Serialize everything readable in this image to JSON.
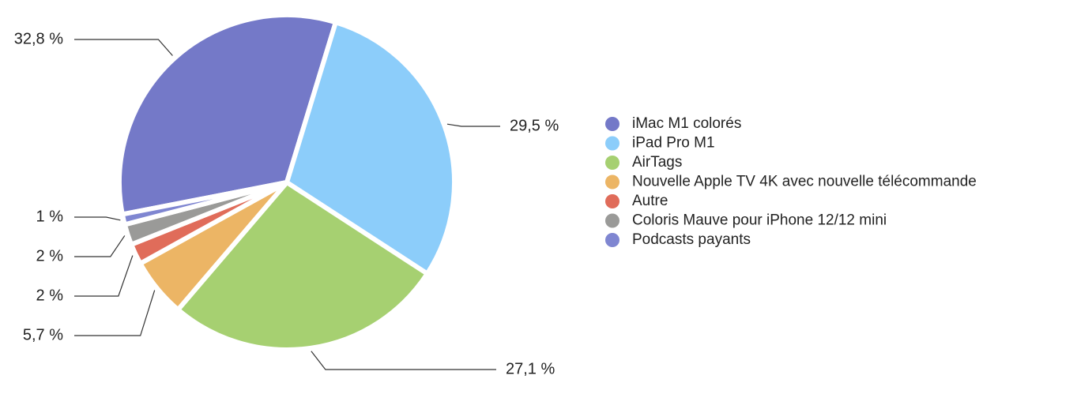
{
  "chart_data": {
    "type": "pie",
    "categories": [
      "iMac M1 colorés",
      "iPad Pro M1",
      "AirTags",
      "Nouvelle Apple TV 4K avec nouvelle télécommande",
      "Autre",
      "Coloris Mauve pour iPhone 12/12 mini",
      "Podcasts payants"
    ],
    "values": [
      32.8,
      29.5,
      27.1,
      5.7,
      2,
      2,
      1
    ],
    "value_labels": [
      "32,8 %",
      "29,5 %",
      "27,1 %",
      "5,7 %",
      "2 %",
      "2 %",
      "1 %"
    ],
    "colors": [
      "#7479c8",
      "#8ccdfa",
      "#a6d071",
      "#ecb565",
      "#e06c5a",
      "#9a9a98",
      "#7f86d1"
    ],
    "legend": "right"
  }
}
